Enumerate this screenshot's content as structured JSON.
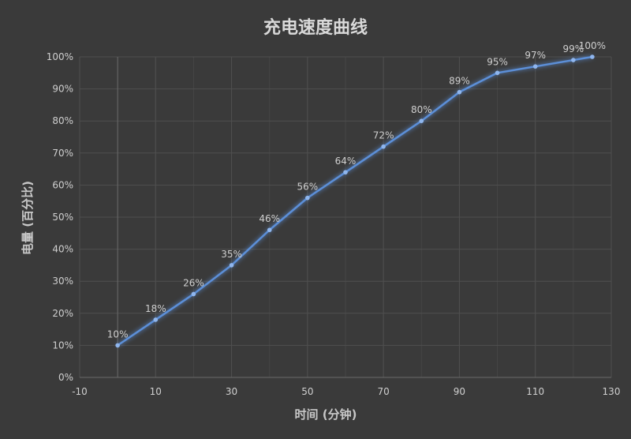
{
  "chart_data": {
    "type": "line",
    "title": "充电速度曲线",
    "xlabel": "时间 (分钟)",
    "ylabel": "电量 (百分比)",
    "xlim": [
      -10,
      130
    ],
    "ylim": [
      0,
      100
    ],
    "x_ticks": [
      -10,
      10,
      30,
      50,
      70,
      90,
      110,
      130
    ],
    "y_ticks": [
      0,
      10,
      20,
      30,
      40,
      50,
      60,
      70,
      80,
      90,
      100
    ],
    "y_tick_labels": [
      "0%",
      "10%",
      "20%",
      "30%",
      "40%",
      "50%",
      "60%",
      "70%",
      "80%",
      "90%",
      "100%"
    ],
    "grid": true,
    "line_color": "#5b8fd8",
    "series": [
      {
        "x": [
          0,
          10,
          20,
          30,
          40,
          50,
          60,
          70,
          80,
          90,
          100,
          110,
          120,
          125
        ],
        "values": [
          10,
          18,
          26,
          35,
          46,
          56,
          64,
          72,
          80,
          89,
          95,
          97,
          99,
          100
        ],
        "labels": [
          "10%",
          "18%",
          "26%",
          "35%",
          "46%",
          "56%",
          "64%",
          "72%",
          "80%",
          "89%",
          "95%",
          "97%",
          "99%",
          "100%"
        ]
      }
    ]
  }
}
